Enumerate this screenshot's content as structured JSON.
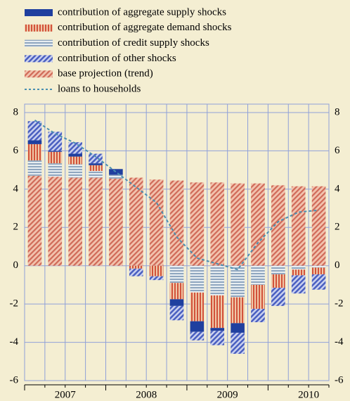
{
  "chart_data": {
    "type": "stacked_bar",
    "categories": [
      null,
      null,
      null,
      null,
      null,
      null,
      null,
      null,
      null,
      null,
      null,
      null,
      null,
      null,
      null
    ],
    "year_labels": [
      "2007",
      "2008",
      "2009",
      "2010"
    ],
    "series": [
      {
        "name": "contribution of aggregate supply shocks",
        "color": "#1f3f9f",
        "values": [
          0.2,
          0.05,
          0.15,
          0.1,
          0.3,
          0,
          0,
          -0.35,
          -0.55,
          -0.15,
          -0.5,
          0,
          0,
          0,
          0
        ]
      },
      {
        "name": "contribution of aggregate demand shocks",
        "color": "#d2523a",
        "values": [
          0.85,
          0.6,
          0.4,
          0.3,
          0,
          -0.15,
          -0.55,
          -0.85,
          -1.5,
          -1.7,
          -1.35,
          -1.25,
          -0.7,
          -0.3,
          -0.35
        ]
      },
      {
        "name": "contribution of credit supply shocks",
        "color": "#8fa6bf",
        "values": [
          0.8,
          0.7,
          0.7,
          0.35,
          0.2,
          0,
          0,
          -0.9,
          -1.4,
          -1.55,
          -1.65,
          -1.0,
          -0.45,
          -0.2,
          -0.1
        ]
      },
      {
        "name": "contribution of other shocks",
        "color": "#4a5fc0",
        "values": [
          1.0,
          1.0,
          0.6,
          0.5,
          0,
          -0.4,
          -0.2,
          -0.75,
          -0.45,
          -0.75,
          -1.1,
          -0.7,
          -0.95,
          -0.95,
          -0.8
        ]
      },
      {
        "name": "base projection (trend)",
        "color": "#d06a58",
        "values": [
          4.7,
          4.65,
          4.6,
          4.6,
          4.55,
          4.6,
          4.5,
          4.45,
          4.35,
          4.35,
          4.3,
          4.3,
          4.2,
          4.15,
          4.15
        ]
      }
    ],
    "line": {
      "name": "loans to households",
      "color": "#4a8fb0",
      "values": [
        7.6,
        6.9,
        6.4,
        5.7,
        4.9,
        4.1,
        3.3,
        1.5,
        0.4,
        0.1,
        -0.2,
        1.2,
        2.3,
        2.8,
        2.9
      ]
    },
    "ylim": [
      -6,
      8
    ],
    "yticks": [
      -6,
      -4,
      -2,
      0,
      2,
      4,
      6,
      8
    ],
    "grid": true
  }
}
